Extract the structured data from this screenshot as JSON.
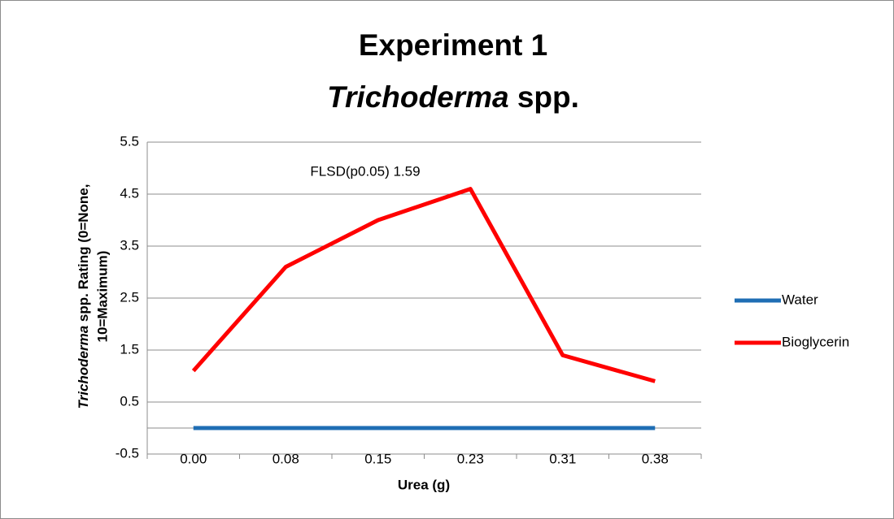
{
  "chart_data": {
    "type": "line",
    "title": [
      "Experiment 1",
      [
        "Trichoderma",
        " spp."
      ]
    ],
    "x_label": "Urea (g)",
    "y_label": [
      [
        "Trichoderma",
        " spp. Rating (0=None,"
      ],
      "10=Maximum)"
    ],
    "annotation": "FLSD(p0.05) 1.59",
    "categories": [
      "0.00",
      "0.08",
      "0.15",
      "0.23",
      "0.31",
      "0.38"
    ],
    "series": [
      {
        "name": "Water",
        "color": "#1f6eb4",
        "values": [
          0,
          0,
          0,
          0,
          0,
          0
        ]
      },
      {
        "name": "Bioglycerin",
        "color": "#ff0000",
        "values": [
          1.1,
          3.1,
          4.0,
          4.6,
          1.4,
          0.9
        ]
      }
    ],
    "ylim": [
      -0.5,
      5.5
    ],
    "yticks": [
      -0.5,
      0.5,
      1.5,
      2.5,
      3.5,
      4.5,
      5.5
    ],
    "grid": true,
    "legend": "right"
  }
}
